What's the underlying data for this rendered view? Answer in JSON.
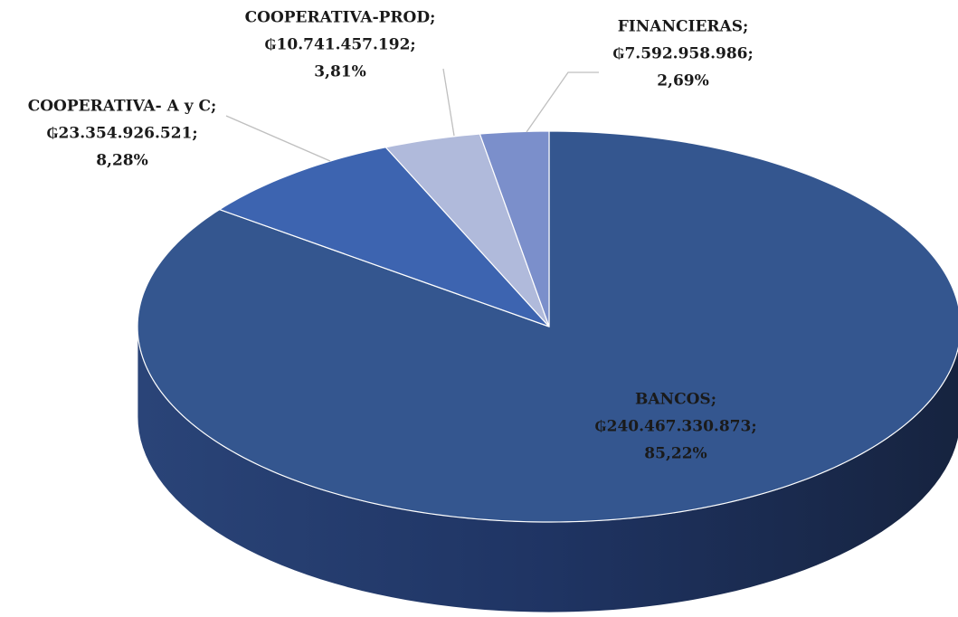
{
  "chart_data": {
    "type": "pie3d",
    "categories": [
      "BANCOS;",
      "COOPERATIVA- A y C;",
      "COOPERATIVA-PROD;",
      "FINANCIERAS;"
    ],
    "values": [
      240467330873,
      23354926521,
      10741457192,
      7592958986
    ],
    "value_labels": [
      "₲240.467.330.873;",
      "₲23.354.926.521;",
      "₲10.741.457.192;",
      "₲7.592.958.986;"
    ],
    "percent_labels": [
      "85,22%",
      "8,28%",
      "3,81%",
      "2,69%"
    ],
    "colors": [
      "#34568f",
      "#3d64b0",
      "#b0badb",
      "#7b8fcb"
    ]
  }
}
